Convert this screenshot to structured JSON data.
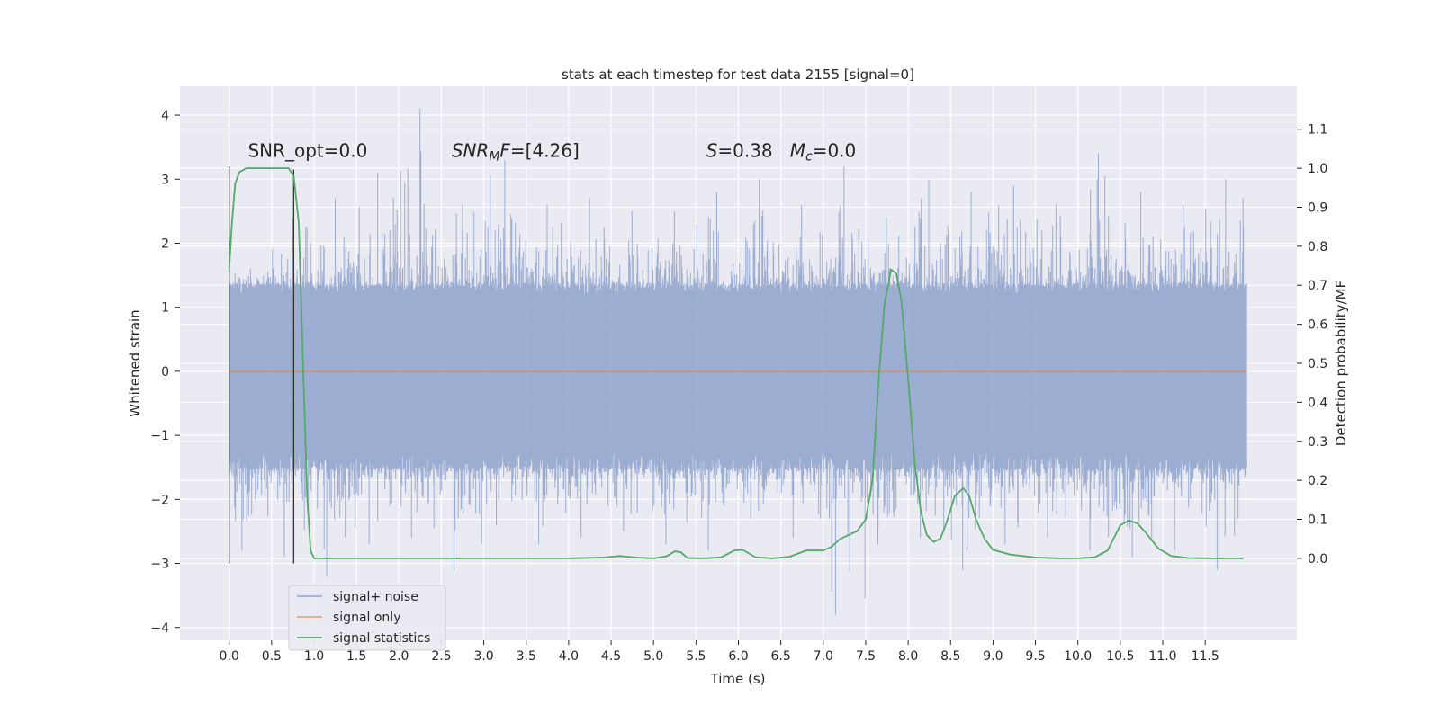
{
  "chart_data": {
    "type": "line",
    "title": "stats at each timestep for test data 2155 [signal=0]",
    "xlabel": "Time (s)",
    "ylabel": "Whitened strain",
    "y2label": "Detection probability/MF",
    "xlim": [
      -0.58,
      12.58
    ],
    "ylim": [
      -4.2,
      4.45
    ],
    "y2lim": [
      -0.21,
      1.21
    ],
    "xticks": [
      0.0,
      0.5,
      1.0,
      1.5,
      2.0,
      2.5,
      3.0,
      3.5,
      4.0,
      4.5,
      5.0,
      5.5,
      6.0,
      6.5,
      7.0,
      7.5,
      8.0,
      8.5,
      9.0,
      9.5,
      10.0,
      10.5,
      11.0,
      11.5
    ],
    "xtick_labels": [
      "0.0",
      "0.5",
      "1.0",
      "1.5",
      "2.0",
      "2.5",
      "3.0",
      "3.5",
      "4.0",
      "4.5",
      "5.0",
      "5.5",
      "6.0",
      "6.5",
      "7.0",
      "7.5",
      "8.0",
      "8.5",
      "9.0",
      "9.5",
      "10.0",
      "10.5",
      "11.0",
      "11.5"
    ],
    "yticks": [
      -4,
      -3,
      -2,
      -1,
      0,
      1,
      2,
      3,
      4
    ],
    "ytick_labels": [
      "−4",
      "−3",
      "−2",
      "−1",
      "0",
      "1",
      "2",
      "3",
      "4"
    ],
    "y2ticks": [
      0.0,
      0.1,
      0.2,
      0.3,
      0.4,
      0.5,
      0.6,
      0.7,
      0.8,
      0.9,
      1.0,
      1.1
    ],
    "y2tick_labels": [
      "0.0",
      "0.1",
      "0.2",
      "0.3",
      "0.4",
      "0.5",
      "0.6",
      "0.7",
      "0.8",
      "0.9",
      "1.0",
      "1.1"
    ],
    "grid": true,
    "legend_position": "lower-left",
    "annotations": [
      {
        "x": 0.22,
        "y": 3.35,
        "parts": [
          {
            "t": "SNR_opt=0.0",
            "i": false
          }
        ]
      },
      {
        "x": 2.62,
        "y": 3.35,
        "parts": [
          {
            "t": "SNR",
            "i": true
          },
          {
            "t": "M",
            "i": true,
            "sub": true
          },
          {
            "t": "F",
            "i": true
          },
          {
            "t": "=[4.26]",
            "i": false
          }
        ]
      },
      {
        "x": 5.62,
        "y": 3.35,
        "parts": [
          {
            "t": "S",
            "i": true
          },
          {
            "t": "=0.38   ",
            "i": false
          },
          {
            "t": "M",
            "i": true
          },
          {
            "t": "c",
            "i": true,
            "sub": true
          },
          {
            "t": "=0.0",
            "i": false
          }
        ]
      }
    ],
    "vlines": [
      {
        "x": 0.0,
        "y0": -3.0,
        "y1": 3.2,
        "color": "#333333"
      },
      {
        "x": 0.76,
        "y0": -3.0,
        "y1": 3.15,
        "color": "#333333"
      }
    ],
    "series": [
      {
        "name": "signal+ noise",
        "color": "#8ea2cc",
        "axis": "left",
        "x_range": [
          0.0,
          11.99
        ],
        "band": [
          -1.5,
          1.35
        ],
        "envelope_upper": [
          1.6,
          2.4,
          2.7,
          3.1,
          4.1,
          2.6,
          3.3,
          2.6,
          2.7,
          2.5,
          2.5,
          2.8,
          3.0,
          2.6,
          3.2,
          2.4,
          3.0,
          2.8,
          2.9,
          2.6,
          3.4,
          2.8,
          2.6,
          3.0
        ],
        "envelope_lower": [
          -2.8,
          -2.9,
          -3.2,
          -2.7,
          -2.6,
          -3.1,
          -2.4,
          -2.7,
          -2.6,
          -2.5,
          -2.7,
          -2.8,
          -2.3,
          -2.6,
          -3.8,
          -2.7,
          -2.6,
          -3.1,
          -2.7,
          -2.6,
          -2.8,
          -2.9,
          -2.8,
          -3.1
        ],
        "seed": 2155
      },
      {
        "name": "signal only",
        "color": "#dd8452",
        "axis": "left",
        "x": [
          0.0,
          11.99
        ],
        "y": [
          0.0,
          0.0
        ]
      },
      {
        "name": "signal statistics",
        "color": "#55a868",
        "axis": "right",
        "x": [
          0.0,
          0.03,
          0.07,
          0.12,
          0.2,
          0.3,
          0.5,
          0.7,
          0.76,
          0.82,
          0.87,
          0.92,
          0.96,
          1.0,
          1.1,
          1.5,
          2.0,
          3.0,
          4.0,
          4.4,
          4.6,
          4.8,
          5.0,
          5.15,
          5.25,
          5.32,
          5.4,
          5.6,
          5.8,
          5.95,
          6.05,
          6.2,
          6.4,
          6.6,
          6.8,
          7.0,
          7.1,
          7.2,
          7.3,
          7.4,
          7.5,
          7.58,
          7.65,
          7.72,
          7.8,
          7.86,
          7.92,
          8.0,
          8.08,
          8.15,
          8.22,
          8.3,
          8.38,
          8.45,
          8.55,
          8.65,
          8.72,
          8.8,
          8.9,
          9.0,
          9.2,
          9.5,
          9.8,
          10.0,
          10.2,
          10.35,
          10.5,
          10.6,
          10.7,
          10.8,
          10.95,
          11.1,
          11.3,
          11.6,
          11.8,
          11.95
        ],
        "y": [
          0.74,
          0.85,
          0.96,
          0.99,
          1.0,
          1.0,
          1.0,
          1.0,
          0.98,
          0.86,
          0.5,
          0.15,
          0.02,
          0.0,
          0.0,
          0.0,
          0.0,
          0.0,
          0.0,
          0.002,
          0.006,
          0.002,
          0.0,
          0.005,
          0.018,
          0.016,
          0.001,
          0.0,
          0.003,
          0.02,
          0.022,
          0.003,
          0.0,
          0.004,
          0.02,
          0.02,
          0.03,
          0.05,
          0.06,
          0.07,
          0.1,
          0.2,
          0.45,
          0.65,
          0.74,
          0.73,
          0.66,
          0.46,
          0.24,
          0.12,
          0.06,
          0.042,
          0.05,
          0.09,
          0.16,
          0.18,
          0.16,
          0.1,
          0.05,
          0.022,
          0.01,
          0.002,
          0.0,
          0.0,
          0.003,
          0.02,
          0.085,
          0.097,
          0.09,
          0.066,
          0.025,
          0.006,
          0.001,
          0.0,
          0.0,
          0.0
        ]
      }
    ]
  }
}
